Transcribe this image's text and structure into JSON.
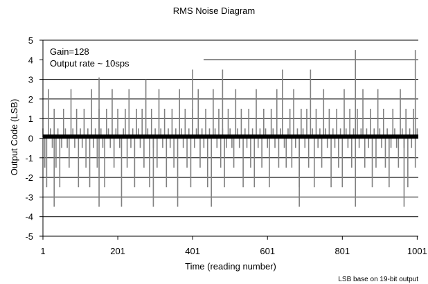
{
  "chart_data": {
    "type": "line",
    "title": "RMS Noise Diagram",
    "xlabel": "Time (reading number)",
    "ylabel": "Output Code (LSB)",
    "xlim": [
      1,
      1004
    ],
    "ylim": [
      -5,
      5
    ],
    "x_ticks": [
      1,
      201,
      401,
      601,
      801,
      1001
    ],
    "y_ticks": [
      5,
      4,
      3,
      2,
      1,
      0,
      -1,
      -2,
      -3,
      -4,
      -5
    ],
    "grid": "horizontal",
    "annotations": [
      "Gain=128",
      "Output rate ~ 10sps"
    ],
    "footnote": "LSB base on 19-bit output",
    "series": [
      {
        "color": "#808080",
        "sample_step": 5,
        "x_start": 1,
        "values": [
          0.5,
          -1.5,
          -2.5,
          2.5,
          0.5,
          -0.5,
          1.5,
          -1.5,
          0.5,
          -2.5,
          -0.5,
          1.5,
          0.5,
          -0.5,
          -1.5,
          2.5,
          0.5,
          -0.5,
          1.5,
          -2.5,
          0.5,
          -0.5,
          1.5,
          -1.5,
          0.5,
          -2.5,
          2.5,
          -0.5,
          0.5,
          -1.5,
          1.5,
          0.5,
          -0.5,
          -2.5,
          1.5,
          0.5,
          -0.5,
          2.5,
          -1.5,
          0.5,
          1.5,
          -0.5,
          -3.5,
          0.5,
          1.5,
          -1.5,
          2.5,
          -0.5,
          0.5,
          -2.5,
          1.5,
          0.5,
          -0.5,
          1.5,
          -1.5,
          3.0,
          0.5,
          -2.5,
          1.5,
          -0.5,
          0.5,
          -1.5,
          2.5,
          0.5,
          -0.5,
          1.5,
          -2.5,
          0.5,
          -0.5,
          1.5,
          -1.5,
          0.5,
          -3.5,
          2.5,
          0.5,
          -0.5,
          1.5,
          -1.5,
          0.5,
          -2.5,
          1.5,
          -0.5,
          0.5,
          2.5,
          -1.5,
          0.5,
          -0.5,
          1.5,
          -2.5,
          0.5,
          -3.5,
          2.5,
          0.5,
          -0.5,
          1.5,
          -1.5,
          0.5,
          -2.5,
          -0.5,
          1.5,
          0.5,
          -0.5,
          -1.5,
          2.5,
          0.5,
          -0.5,
          1.5,
          -2.5,
          0.5,
          -0.5,
          1.5,
          -1.5,
          0.5,
          -2.5,
          2.5,
          -0.5,
          0.5,
          -1.5,
          1.5,
          0.5,
          -0.5,
          -2.5,
          1.5,
          0.5,
          -0.5,
          2.5,
          -1.5,
          0.5,
          3.5,
          -0.5,
          -1.5,
          0.5,
          1.5,
          -1.5,
          2.5,
          -0.5,
          0.5,
          -2.5,
          1.5,
          0.5,
          -0.5,
          1.5,
          -1.5,
          3.5,
          0.5,
          -2.5,
          1.5,
          -0.5,
          0.5,
          -1.5,
          2.5,
          0.5,
          -0.5,
          1.5,
          -2.5,
          0.5,
          -0.5,
          1.5,
          -1.5,
          0.5,
          -2.5,
          2.5,
          0.5,
          -0.5,
          1.5,
          -1.5,
          0.5,
          -3.5,
          1.5,
          -0.5,
          0.5,
          2.5,
          -1.5,
          0.5,
          -0.5,
          1.5,
          -2.5,
          0.5,
          -1.5,
          2.5,
          0.5,
          -0.5,
          1.5,
          -1.5,
          0.5,
          -2.5,
          -0.5,
          1.5,
          0.5,
          -0.5,
          -1.5,
          2.5,
          0.5,
          -0.5,
          1.5,
          -2.5,
          0.5,
          -0.5,
          1.5,
          -1.5,
          0.5,
          -2.5,
          2.5,
          -0.5,
          0.5,
          -1.5,
          1.5,
          0.5,
          -0.5,
          -2.5,
          1.5,
          0.5,
          -0.5,
          2.5,
          -1.5,
          0.5,
          1.5,
          -0.5,
          -2.5,
          0.5,
          1.5,
          -1.5,
          2.5,
          -0.5,
          0.5,
          -2.5,
          1.5,
          0.5,
          -0.5,
          1.5,
          -1.5,
          2.5,
          0.5,
          -2.5,
          1.5,
          -0.5,
          0.5,
          -1.5,
          2.5,
          0.5,
          -0.5,
          1.5,
          -2.5,
          0.5,
          -0.5,
          1.5,
          -1.5,
          0.5,
          -2.5,
          2.5,
          0.5,
          -0.5,
          1.5,
          -1.5,
          0.5,
          -2.5,
          1.5,
          -0.5,
          0.5,
          2.5,
          -1.5,
          0.5,
          -0.5,
          1.5,
          -2.5,
          0.5,
          -1.5,
          2.5,
          0.5,
          -0.5,
          1.5,
          -1.5,
          0.5,
          -2.5,
          -0.5,
          1.5,
          0.5,
          -0.5,
          -1.5,
          2.5,
          0.5,
          -0.5,
          1.5,
          -2.5,
          0.5,
          -0.5,
          1.5,
          -1.5,
          0.5,
          -2.5,
          2.5,
          -0.5,
          0.5,
          -1.5,
          1.5,
          0.5,
          -0.5,
          -2.5,
          1.5,
          0.5,
          -0.5,
          2.5,
          -1.5,
          0.5,
          1.5,
          -0.5,
          -2.5,
          0.5,
          1.5,
          -1.5,
          2.5,
          -0.5,
          0.5,
          -2.5,
          1.5,
          0.5,
          -0.5,
          1.5,
          -1.5,
          2.5,
          0.5,
          -2.5,
          1.5,
          -0.5,
          0.5,
          -1.5,
          2.5,
          0.5,
          -0.5,
          1.5,
          -2.5,
          0.5,
          -0.5,
          1.5,
          -1.5,
          0.5,
          -2.5,
          2.5,
          0.5,
          -0.5,
          1.5,
          -1.5,
          0.5,
          -2.5,
          1.5,
          -0.5,
          0.5,
          2.5,
          -1.5,
          0.5,
          -0.5,
          1.5,
          -2.5,
          0.5,
          -1.5,
          2.5,
          0.5,
          -0.5,
          1.5,
          -1.5,
          0.5,
          -2.5,
          -0.5,
          1.5,
          0.5,
          -0.5,
          -1.5,
          2.5,
          0.5,
          -0.5,
          1.5,
          -2.5,
          0.5,
          -0.5,
          1.5,
          -1.5,
          0.5,
          -2.5,
          2.5,
          -0.5,
          0.5,
          -1.5,
          1.5,
          0.5,
          -0.5,
          -2.5,
          1.5,
          0.5,
          -0.5,
          2.5,
          -1.5,
          0.5,
          1.5,
          -0.5,
          -2.5,
          0.5,
          1.5,
          -1.5,
          2.5,
          -0.5,
          0.5,
          -2.5,
          1.5,
          0.5,
          -0.5,
          1.5,
          -1.5,
          2.5,
          0.5,
          -2.5,
          1.5,
          -0.5,
          0.5,
          -1.5,
          2.5,
          0.5,
          -0.5,
          1.5,
          -2.5,
          0.5,
          -0.5,
          1.5,
          -1.5,
          0.5,
          -2.5,
          2.5,
          0.5,
          -0.5,
          1.5,
          -1.5,
          0.5,
          -2.5,
          1.5,
          -0.5,
          0.5,
          2.5,
          -1.5,
          0.5,
          -0.5,
          1.5,
          -2.5,
          0.5,
          -1.5,
          2.5,
          0.5,
          -0.5,
          1.5,
          -1.5,
          0.5,
          -2.5,
          -0.5,
          1.5,
          0.5,
          -0.5,
          -1.5,
          2.5,
          0.5,
          -0.5,
          1.5,
          -2.5,
          0.5,
          -0.5,
          1.5,
          -1.5,
          0.5,
          -2.5,
          2.5,
          -0.5,
          0.5,
          -1.5,
          1.5,
          0.5,
          -0.5,
          -2.5,
          1.5,
          0.5,
          -0.5,
          2.5,
          -1.5,
          0.5,
          1.5,
          -0.5,
          -2.5,
          0.5,
          1.5,
          -1.5,
          2.5,
          -0.5,
          0.5,
          -2.5,
          1.5,
          0.5,
          -0.5,
          1.5,
          -1.5,
          2.5,
          0.5,
          -2.5,
          1.5,
          -0.5,
          0.5,
          -1.5,
          2.5,
          0.5,
          -0.5,
          1.5,
          -2.5,
          0.5,
          -0.5,
          1.5,
          -1.5,
          0.5,
          -2.5,
          2.5,
          0.5,
          -0.5,
          1.5,
          -1.5,
          0.5,
          -2.5,
          1.5,
          -0.5,
          0.5,
          2.5,
          -1.5,
          0.5,
          -0.5,
          1.5,
          -2.5,
          0.5,
          -1.5,
          2.5,
          0.5,
          -0.5,
          1.5,
          -1.5,
          0.5,
          -2.5,
          -0.5,
          1.5,
          0.5,
          -0.5,
          -1.5,
          2.5,
          0.5,
          -0.5,
          1.5,
          -2.5,
          0.5,
          -0.5,
          1.5,
          -1.5,
          0.5,
          -2.5,
          2.5,
          -0.5,
          0.5,
          -1.5,
          1.5,
          0.5,
          -0.5,
          -2.5,
          1.5,
          0.5,
          -0.5,
          2.5,
          -1.5,
          0.5,
          1.5,
          -0.5,
          -2.5,
          0.5,
          1.5,
          -1.5,
          2.5,
          -0.5,
          0.5,
          -2.5,
          1.5,
          0.5,
          -0.5,
          1.5,
          -1.5,
          2.5,
          0.5,
          -2.5,
          1.5,
          -0.5,
          0.5,
          -1.5,
          2.5,
          0.5,
          -0.5,
          1.5,
          -2.5,
          0.5,
          -0.5,
          1.5,
          -1.5,
          0.5,
          -2.5,
          2.5,
          0.5,
          -0.5,
          1.5,
          -1.5,
          0.5,
          -2.5,
          1.5,
          -0.5,
          0.5,
          2.5,
          -1.5,
          0.5,
          -0.5,
          1.5,
          -2.5,
          0.5,
          -1.5,
          2.5,
          0.5,
          -0.5,
          1.5,
          -1.5,
          0.5,
          -2.5,
          -0.5,
          1.5,
          0.5,
          -0.5,
          -1.5,
          2.5,
          0.5,
          -0.5,
          1.5,
          -2.5,
          0.5,
          -0.5,
          1.5,
          -1.5,
          0.5,
          -2.5,
          2.5,
          -0.5,
          0.5,
          -1.5,
          1.5,
          0.5,
          -0.5,
          -2.5,
          1.5,
          0.5,
          -0.5,
          2.5,
          -1.5,
          0.5,
          1.5,
          -0.5,
          -2.5,
          0.5,
          1.5,
          -1.5,
          2.5,
          -0.5,
          0.5,
          -2.5,
          1.5,
          0.5,
          -0.5,
          1.5,
          -1.5,
          2.5,
          0.5,
          -2.5,
          1.5,
          -0.5,
          0.5,
          -1.5,
          2.5,
          0.5,
          -0.5,
          1.5,
          -2.5,
          0.5,
          -0.5,
          1.5,
          -1.5,
          0.5,
          -2.5,
          2.5,
          0.5,
          -0.5,
          1.5,
          -1.5,
          0.5,
          -2.5,
          1.5,
          -0.5,
          0.5,
          2.5,
          -1.5,
          0.5,
          -0.5,
          1.5,
          -2.5,
          0.5,
          -1.5,
          2.5,
          0.5,
          -0.5,
          1.5,
          -1.5,
          0.5,
          -2.5,
          -0.5,
          1.5,
          0.5,
          -0.5,
          -1.5,
          2.5,
          0.5,
          -0.5,
          1.5,
          -2.5,
          0.5,
          -0.5,
          1.5,
          -1.5,
          0.5,
          -2.5,
          2.5,
          -0.5,
          0.5,
          -1.5,
          1.5,
          0.5,
          -0.5,
          -2.5,
          1.5,
          0.5,
          -0.5,
          2.5,
          -1.5,
          0.5,
          1.5,
          -0.5,
          -2.5,
          0.5,
          1.5,
          -1.5,
          2.5,
          -0.5,
          0.5,
          -2.5,
          1.5,
          0.5,
          -0.5,
          1.5,
          -1.5,
          2.5,
          0.5,
          -2.5,
          1.5,
          -0.5,
          0.5,
          -1.5,
          2.5,
          0.5,
          -0.5,
          1.5,
          -2.5,
          0.5,
          -0.5,
          1.5,
          -1.5,
          0.5,
          -2.5,
          2.5,
          0.5,
          -0.5,
          1.5,
          -1.5,
          0.5,
          -2.5,
          1.5,
          -0.5,
          0.5,
          2.5,
          -1.5,
          0.5,
          -0.5,
          1.5,
          -2.5,
          0.5,
          -1.5,
          2.5,
          0.5,
          -0.5,
          1.5,
          -1.5,
          0.5,
          -2.5,
          -0.5,
          1.5,
          0.5,
          -0.5,
          -1.5,
          2.5,
          0.5,
          -0.5,
          1.5,
          -2.5,
          0.5,
          -0.5,
          1.5,
          -1.5,
          0.5,
          -2.5,
          2.5,
          -0.5,
          0.5,
          -1.5,
          1.5,
          0.5,
          -0.5,
          -2.5,
          1.5,
          0.5,
          -0.5,
          2.5,
          -1.5,
          0.5,
          1.5,
          -0.5,
          -2.5,
          0.5,
          1.5,
          -1.5,
          2.5,
          -0.5,
          0.5,
          -2.5,
          1.5,
          0.5,
          -0.5,
          1.5,
          -1.5,
          2.5,
          0.5,
          -2.5,
          1.5,
          -0.5,
          0.5,
          -1.5,
          2.5,
          0.5,
          -0.5,
          1.5,
          -2.5,
          0.5,
          -0.5,
          1.5,
          -1.5,
          0.5,
          -2.5,
          2.5,
          0.5,
          -0.5,
          1.5,
          -1.5,
          0.5,
          -2.5,
          1.5,
          -0.5,
          0.5,
          2.5,
          -1.5,
          0.5,
          -0.5,
          1.5,
          -2.5,
          0.5,
          -1.5,
          2.5,
          0.5,
          -0.5,
          1.5,
          -1.5,
          0.5,
          -2.5,
          -0.5,
          1.5,
          0.5,
          -0.5,
          -1.5,
          2.5,
          0.5,
          -0.5,
          1.5,
          -2.5,
          0.5,
          -0.5,
          1.5,
          -1.5,
          0.5,
          -2.5,
          2.5,
          -0.5,
          0.5,
          -1.5,
          1.5,
          0.5,
          -0.5,
          -2.5,
          1.5,
          0.5,
          -0.5,
          2.5,
          -1.5,
          0.5,
          1.5,
          -0.5,
          -2.5,
          0.5,
          1.5,
          -1.5,
          2.5,
          -0.5,
          0.5,
          -2.5,
          1.5,
          0.5,
          -0.5,
          1.5,
          -1.5,
          2.5,
          0.5,
          -2.5,
          1.5,
          -0.5,
          0.5,
          -1.5,
          2.5,
          0.5,
          -0.5,
          1.5,
          -2.5,
          0.5,
          -0.5,
          1.5,
          -1.5,
          0.5,
          -2.5,
          2.5,
          0.5,
          -0.5,
          1.5,
          -1.5,
          0.5,
          -2.5,
          1.5,
          -0.5,
          0.5,
          2.5,
          -1.5,
          0.5,
          -0.5,
          1.5,
          -2.5,
          0.5
        ]
      },
      {
        "color": "#000000",
        "constant_value": 0.08
      }
    ],
    "highlights": [
      {
        "x": 151,
        "y": 3.1
      },
      {
        "x": 151,
        "y": -3.5
      },
      {
        "x": 401,
        "y": 3.5
      },
      {
        "x": 481,
        "y": 3.5
      },
      {
        "x": 836,
        "y": 4.5
      },
      {
        "x": 996,
        "y": 4.5
      },
      {
        "x": 966,
        "y": -3.5
      },
      {
        "x": 296,
        "y": -3.5
      },
      {
        "x": 686,
        "y": -3.5
      },
      {
        "x": 31,
        "y": -3.5
      }
    ]
  }
}
